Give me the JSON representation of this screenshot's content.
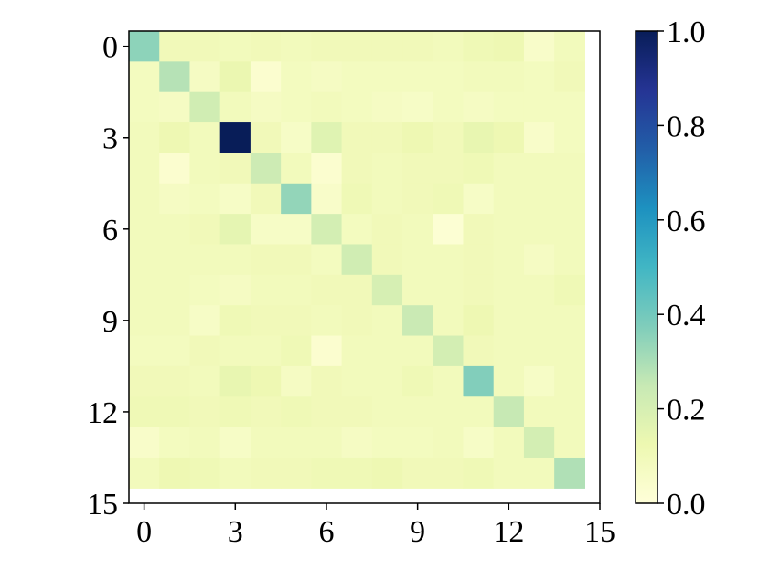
{
  "chart_data": {
    "type": "heatmap",
    "title": "",
    "xlabel": "",
    "ylabel": "",
    "x_tick_labels": [
      "0",
      "3",
      "6",
      "9",
      "12",
      "15"
    ],
    "y_tick_labels": [
      "0",
      "3",
      "6",
      "9",
      "12",
      "15"
    ],
    "x_ticks": [
      0,
      3,
      6,
      9,
      12,
      15
    ],
    "y_ticks": [
      0,
      3,
      6,
      9,
      12,
      15
    ],
    "xlim": [
      -0.5,
      15
    ],
    "ylim": [
      15,
      -0.5
    ],
    "colormap": "YlGnBu",
    "colorbar": {
      "range": [
        0.0,
        1.0
      ],
      "tick_values": [
        0.0,
        0.2,
        0.4,
        0.6,
        0.8,
        1.0
      ],
      "tick_labels": [
        "0.0",
        "0.2",
        "0.4",
        "0.6",
        "0.8",
        "1.0"
      ],
      "colors": [
        "#ffffd9",
        "#edf8b1",
        "#c7e9b4",
        "#7fcdbb",
        "#41b6c4",
        "#1d91c0",
        "#225ea8",
        "#253494",
        "#081d58"
      ]
    },
    "values": [
      [
        0.35,
        0.1,
        0.1,
        0.09,
        0.1,
        0.09,
        0.1,
        0.1,
        0.1,
        0.1,
        0.09,
        0.11,
        0.12,
        0.05,
        0.09
      ],
      [
        0.08,
        0.28,
        0.07,
        0.13,
        0.03,
        0.08,
        0.07,
        0.08,
        0.08,
        0.08,
        0.08,
        0.09,
        0.09,
        0.08,
        0.1
      ],
      [
        0.08,
        0.07,
        0.22,
        0.09,
        0.07,
        0.08,
        0.09,
        0.08,
        0.07,
        0.06,
        0.08,
        0.07,
        0.08,
        0.08,
        0.08
      ],
      [
        0.09,
        0.12,
        0.09,
        1.0,
        0.1,
        0.06,
        0.17,
        0.1,
        0.1,
        0.12,
        0.1,
        0.14,
        0.12,
        0.05,
        0.08
      ],
      [
        0.09,
        0.03,
        0.09,
        0.1,
        0.23,
        0.09,
        0.03,
        0.1,
        0.09,
        0.1,
        0.1,
        0.11,
        0.09,
        0.09,
        0.09
      ],
      [
        0.09,
        0.07,
        0.08,
        0.06,
        0.1,
        0.34,
        0.05,
        0.11,
        0.09,
        0.1,
        0.11,
        0.06,
        0.09,
        0.09,
        0.09
      ],
      [
        0.09,
        0.09,
        0.1,
        0.15,
        0.06,
        0.06,
        0.21,
        0.08,
        0.1,
        0.09,
        0.02,
        0.1,
        0.09,
        0.09,
        0.09
      ],
      [
        0.09,
        0.09,
        0.09,
        0.09,
        0.1,
        0.1,
        0.08,
        0.22,
        0.1,
        0.09,
        0.09,
        0.1,
        0.09,
        0.07,
        0.09
      ],
      [
        0.09,
        0.09,
        0.08,
        0.07,
        0.09,
        0.09,
        0.1,
        0.1,
        0.2,
        0.09,
        0.09,
        0.1,
        0.09,
        0.09,
        0.11
      ],
      [
        0.09,
        0.09,
        0.06,
        0.11,
        0.1,
        0.1,
        0.09,
        0.1,
        0.09,
        0.24,
        0.09,
        0.12,
        0.09,
        0.09,
        0.09
      ],
      [
        0.08,
        0.08,
        0.1,
        0.09,
        0.09,
        0.11,
        0.03,
        0.09,
        0.09,
        0.09,
        0.21,
        0.1,
        0.09,
        0.09,
        0.09
      ],
      [
        0.1,
        0.1,
        0.09,
        0.14,
        0.12,
        0.07,
        0.1,
        0.09,
        0.09,
        0.11,
        0.09,
        0.37,
        0.09,
        0.06,
        0.09
      ],
      [
        0.11,
        0.11,
        0.1,
        0.11,
        0.1,
        0.11,
        0.1,
        0.1,
        0.09,
        0.09,
        0.09,
        0.09,
        0.25,
        0.09,
        0.09
      ],
      [
        0.05,
        0.08,
        0.09,
        0.06,
        0.09,
        0.09,
        0.09,
        0.07,
        0.08,
        0.08,
        0.09,
        0.06,
        0.09,
        0.21,
        0.09
      ],
      [
        0.09,
        0.12,
        0.11,
        0.09,
        0.1,
        0.1,
        0.11,
        0.11,
        0.12,
        0.1,
        0.1,
        0.11,
        0.09,
        0.09,
        0.29
      ]
    ]
  }
}
